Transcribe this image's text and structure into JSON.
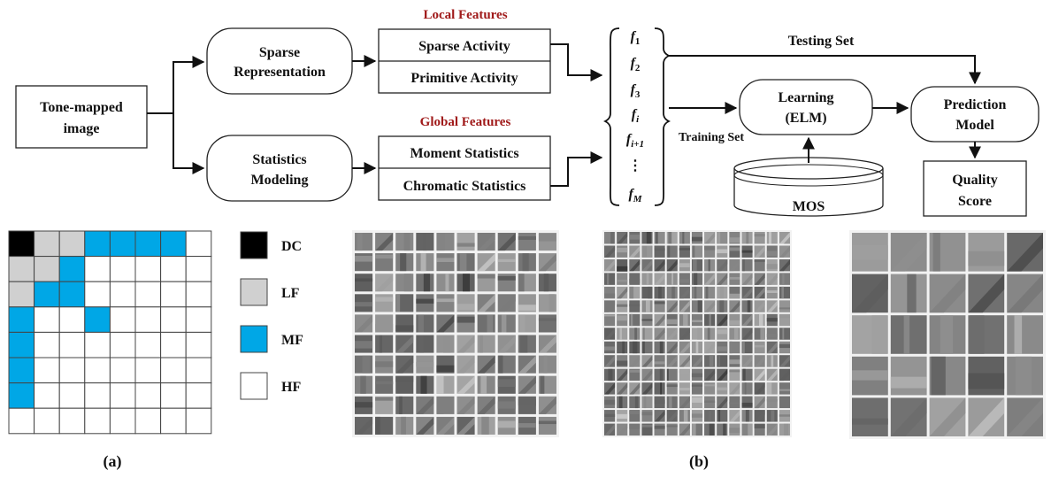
{
  "diagram": {
    "input_node": [
      "Tone-mapped",
      "image"
    ],
    "sparse_node": [
      "Sparse",
      "Representation"
    ],
    "statistics_node": [
      "Statistics",
      "Modeling"
    ],
    "local_features_title": "Local Features",
    "global_features_title": "Global Features",
    "local_features": [
      "Sparse Activity",
      "Primitive Activity"
    ],
    "global_features": [
      "Moment Statistics",
      "Chromatic Statistics"
    ],
    "feature_symbols": [
      {
        "base": "f",
        "sub": "1"
      },
      {
        "base": "f",
        "sub": "2"
      },
      {
        "base": "f",
        "sub": "3"
      },
      {
        "base": "f",
        "sub": "i"
      },
      {
        "base": "f",
        "sub": "i+1"
      },
      {
        "base": "⋮",
        "sub": ""
      },
      {
        "base": "f",
        "sub": "M"
      }
    ],
    "testing_set_label": "Testing Set",
    "training_set_label": "Training Set",
    "learning_node": [
      "Learning",
      "(ELM)"
    ],
    "prediction_node": [
      "Prediction",
      "Model"
    ],
    "mos_label": "MOS",
    "quality_node": [
      "Quality",
      "Score"
    ]
  },
  "dct_grid": {
    "size": 8,
    "cells": [
      [
        "DC",
        "LF",
        "LF",
        "MF",
        "MF",
        "MF",
        "MF",
        "HF"
      ],
      [
        "LF",
        "LF",
        "MF",
        "HF",
        "HF",
        "HF",
        "HF",
        "HF"
      ],
      [
        "LF",
        "MF",
        "MF",
        "HF",
        "HF",
        "HF",
        "HF",
        "HF"
      ],
      [
        "MF",
        "HF",
        "HF",
        "MF",
        "HF",
        "HF",
        "HF",
        "HF"
      ],
      [
        "MF",
        "HF",
        "HF",
        "HF",
        "HF",
        "HF",
        "HF",
        "HF"
      ],
      [
        "MF",
        "HF",
        "HF",
        "HF",
        "HF",
        "HF",
        "HF",
        "HF"
      ],
      [
        "MF",
        "HF",
        "HF",
        "HF",
        "HF",
        "HF",
        "HF",
        "HF"
      ],
      [
        "HF",
        "HF",
        "HF",
        "HF",
        "HF",
        "HF",
        "HF",
        "HF"
      ]
    ],
    "legend": [
      {
        "key": "DC",
        "label": "DC",
        "color": "#000000"
      },
      {
        "key": "LF",
        "label": "LF",
        "color": "#d0d0d0"
      },
      {
        "key": "MF",
        "label": "MF",
        "color": "#00a7e6"
      },
      {
        "key": "HF",
        "label": "HF",
        "color": "#ffffff"
      }
    ]
  },
  "dictionaries": [
    {
      "rows": 10,
      "cols": 10
    },
    {
      "rows": 15,
      "cols": 15
    },
    {
      "rows": 5,
      "cols": 5
    }
  ],
  "captions": [
    "(a)",
    "(b)"
  ]
}
